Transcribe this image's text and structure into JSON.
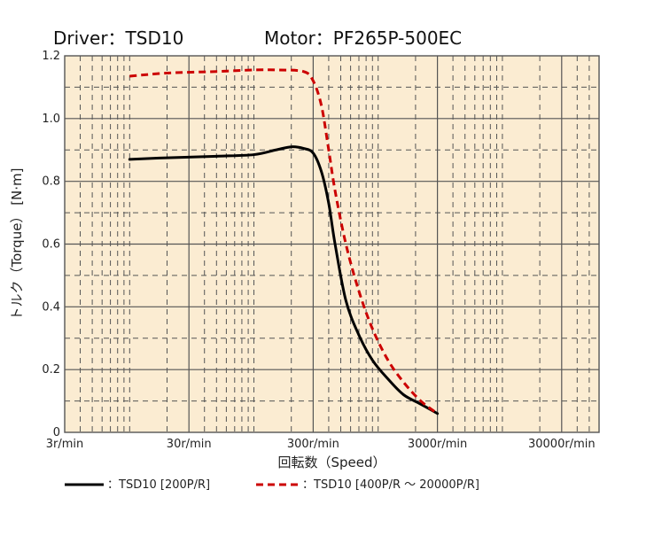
{
  "header": {
    "driver": "Driver：TSD10",
    "motor": "Motor：PF265P-500EC"
  },
  "colors": {
    "plot_background": "#fbecd2",
    "grid": "#555555",
    "series_solid": "#000000",
    "series_dashed": "#cc0000"
  },
  "chart_data": {
    "type": "line",
    "title": "",
    "xlabel": "回転数（Speed）",
    "ylabel": "トルク（Torque） [N·m]",
    "x_scale": "log",
    "xlim": [
      3,
      60000
    ],
    "ylim": [
      0,
      1.2
    ],
    "x_ticks": [
      3,
      30,
      300,
      3000,
      30000
    ],
    "x_tick_labels": [
      "3r/min",
      "30r/min",
      "300r/min",
      "3000r/min",
      "30000r/min"
    ],
    "y_ticks": [
      0,
      0.2,
      0.4,
      0.6,
      0.8,
      1.0,
      1.2
    ],
    "y_tick_labels": [
      "0",
      "0.2",
      "0.4",
      "0.6",
      "0.8",
      "1.0",
      "1.2"
    ],
    "grid": true,
    "legend_position": "bottom",
    "series": [
      {
        "name": "TSD10 [200P/R]",
        "legend_label": "：TSD10 [200P/R]",
        "style": "solid",
        "points": [
          [
            10,
            0.87
          ],
          [
            20,
            0.875
          ],
          [
            50,
            0.88
          ],
          [
            100,
            0.885
          ],
          [
            150,
            0.9
          ],
          [
            200,
            0.91
          ],
          [
            250,
            0.905
          ],
          [
            300,
            0.89
          ],
          [
            350,
            0.83
          ],
          [
            400,
            0.73
          ],
          [
            450,
            0.6
          ],
          [
            550,
            0.42
          ],
          [
            700,
            0.31
          ],
          [
            900,
            0.23
          ],
          [
            1200,
            0.17
          ],
          [
            1600,
            0.12
          ],
          [
            2200,
            0.09
          ],
          [
            3000,
            0.06
          ]
        ]
      },
      {
        "name": "TSD10 [400P/R ~ 20000P/R]",
        "legend_label": "：TSD10 [400P/R ～ 20000P/R]",
        "style": "dashed",
        "points": [
          [
            10,
            1.135
          ],
          [
            20,
            1.145
          ],
          [
            50,
            1.15
          ],
          [
            100,
            1.155
          ],
          [
            150,
            1.155
          ],
          [
            250,
            1.15
          ],
          [
            300,
            1.12
          ],
          [
            350,
            1.04
          ],
          [
            400,
            0.9
          ],
          [
            450,
            0.77
          ],
          [
            550,
            0.6
          ],
          [
            700,
            0.45
          ],
          [
            900,
            0.33
          ],
          [
            1200,
            0.23
          ],
          [
            1600,
            0.16
          ],
          [
            2200,
            0.1
          ],
          [
            3000,
            0.06
          ]
        ]
      }
    ]
  }
}
